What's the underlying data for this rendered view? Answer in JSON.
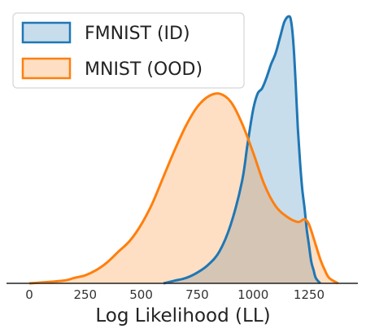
{
  "chart_data": {
    "type": "area",
    "title": "",
    "xlabel": "Log Likelihood (LL)",
    "ylabel": "",
    "xlim": [
      -30,
      1420
    ],
    "ylim": [
      0,
      1.0
    ],
    "x_ticks": [
      "0",
      "250",
      "500",
      "750",
      "1000",
      "1250"
    ],
    "legend_position": "top-left",
    "grid": false,
    "series": [
      {
        "name": "FMNIST (ID)",
        "stroke": "#1f77b4",
        "fill": "#1f77b4",
        "fill_opacity": 0.25,
        "points": [
          [
            600,
            0.0
          ],
          [
            650,
            0.01
          ],
          [
            700,
            0.02
          ],
          [
            750,
            0.04
          ],
          [
            800,
            0.07
          ],
          [
            850,
            0.12
          ],
          [
            900,
            0.22
          ],
          [
            950,
            0.38
          ],
          [
            975,
            0.52
          ],
          [
            1000,
            0.65
          ],
          [
            1020,
            0.71
          ],
          [
            1040,
            0.73
          ],
          [
            1060,
            0.77
          ],
          [
            1080,
            0.82
          ],
          [
            1100,
            0.86
          ],
          [
            1120,
            0.92
          ],
          [
            1140,
            0.98
          ],
          [
            1160,
            1.0
          ],
          [
            1170,
            0.98
          ],
          [
            1180,
            0.9
          ],
          [
            1190,
            0.75
          ],
          [
            1200,
            0.58
          ],
          [
            1210,
            0.45
          ],
          [
            1220,
            0.35
          ],
          [
            1230,
            0.28
          ],
          [
            1240,
            0.2
          ],
          [
            1250,
            0.14
          ],
          [
            1260,
            0.08
          ],
          [
            1270,
            0.05
          ],
          [
            1280,
            0.02
          ],
          [
            1300,
            0.0
          ]
        ]
      },
      {
        "name": "MNIST (OOD)",
        "stroke": "#ff7f0e",
        "fill": "#ff7f0e",
        "fill_opacity": 0.25,
        "points": [
          [
            0,
            0.0
          ],
          [
            150,
            0.01
          ],
          [
            200,
            0.02
          ],
          [
            250,
            0.03
          ],
          [
            300,
            0.05
          ],
          [
            350,
            0.08
          ],
          [
            400,
            0.12
          ],
          [
            450,
            0.16
          ],
          [
            500,
            0.22
          ],
          [
            550,
            0.3
          ],
          [
            600,
            0.4
          ],
          [
            650,
            0.5
          ],
          [
            700,
            0.59
          ],
          [
            750,
            0.66
          ],
          [
            800,
            0.7
          ],
          [
            850,
            0.71
          ],
          [
            900,
            0.68
          ],
          [
            950,
            0.6
          ],
          [
            1000,
            0.49
          ],
          [
            1050,
            0.37
          ],
          [
            1100,
            0.29
          ],
          [
            1150,
            0.25
          ],
          [
            1200,
            0.23
          ],
          [
            1230,
            0.24
          ],
          [
            1250,
            0.22
          ],
          [
            1270,
            0.17
          ],
          [
            1300,
            0.09
          ],
          [
            1320,
            0.05
          ],
          [
            1340,
            0.02
          ],
          [
            1380,
            0.0
          ]
        ]
      }
    ]
  }
}
